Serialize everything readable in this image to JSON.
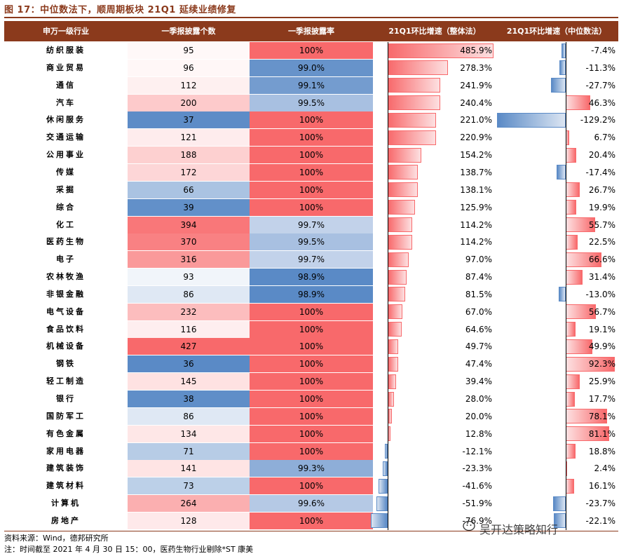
{
  "title": "图 17：中位数法下，顺周期板块 21Q1 延续业绩修复",
  "headers": [
    "申万一级行业",
    "一季报披露个数",
    "一季报披露率",
    "21Q1环比增速（整体法）",
    "21Q1环比增速（中位数法）"
  ],
  "rows": [
    {
      "name": "纺织服装",
      "count": 95,
      "rate": "100%",
      "total": "485.9%",
      "total_v": 485.9,
      "median": "-7.4%",
      "median_v": -7.4
    },
    {
      "name": "商业贸易",
      "count": 96,
      "rate": "99.0%",
      "total": "278.3%",
      "total_v": 278.3,
      "median": "-11.3%",
      "median_v": -11.3
    },
    {
      "name": "通信",
      "count": 112,
      "rate": "99.1%",
      "total": "241.9%",
      "total_v": 241.9,
      "median": "-27.7%",
      "median_v": -27.7
    },
    {
      "name": "汽车",
      "count": 200,
      "rate": "99.5%",
      "total": "240.4%",
      "total_v": 240.4,
      "median": "46.3%",
      "median_v": 46.3
    },
    {
      "name": "休闲服务",
      "count": 37,
      "rate": "100%",
      "total": "221.0%",
      "total_v": 221.0,
      "median": "-129.2%",
      "median_v": -129.2
    },
    {
      "name": "交通运输",
      "count": 121,
      "rate": "100%",
      "total": "220.9%",
      "total_v": 220.9,
      "median": "6.7%",
      "median_v": 6.7
    },
    {
      "name": "公用事业",
      "count": 188,
      "rate": "100%",
      "total": "154.2%",
      "total_v": 154.2,
      "median": "20.4%",
      "median_v": 20.4
    },
    {
      "name": "传媒",
      "count": 172,
      "rate": "100%",
      "total": "138.7%",
      "total_v": 138.7,
      "median": "-17.4%",
      "median_v": -17.4
    },
    {
      "name": "采掘",
      "count": 66,
      "rate": "100%",
      "total": "138.1%",
      "total_v": 138.1,
      "median": "26.7%",
      "median_v": 26.7
    },
    {
      "name": "综合",
      "count": 39,
      "rate": "100%",
      "total": "125.9%",
      "total_v": 125.9,
      "median": "19.9%",
      "median_v": 19.9
    },
    {
      "name": "化工",
      "count": 394,
      "rate": "99.7%",
      "total": "114.2%",
      "total_v": 114.2,
      "median": "55.7%",
      "median_v": 55.7
    },
    {
      "name": "医药生物",
      "count": 370,
      "rate": "99.5%",
      "total": "114.2%",
      "total_v": 114.2,
      "median": "22.5%",
      "median_v": 22.5
    },
    {
      "name": "电子",
      "count": 316,
      "rate": "99.7%",
      "total": "97.0%",
      "total_v": 97.0,
      "median": "66.6%",
      "median_v": 66.6
    },
    {
      "name": "农林牧渔",
      "count": 93,
      "rate": "98.9%",
      "total": "87.4%",
      "total_v": 87.4,
      "median": "31.4%",
      "median_v": 31.4
    },
    {
      "name": "非银金融",
      "count": 86,
      "rate": "98.9%",
      "total": "81.5%",
      "total_v": 81.5,
      "median": "-13.0%",
      "median_v": -13.0
    },
    {
      "name": "电气设备",
      "count": 232,
      "rate": "100%",
      "total": "67.0%",
      "total_v": 67.0,
      "median": "56.7%",
      "median_v": 56.7
    },
    {
      "name": "食品饮料",
      "count": 116,
      "rate": "100%",
      "total": "64.6%",
      "total_v": 64.6,
      "median": "19.1%",
      "median_v": 19.1
    },
    {
      "name": "机械设备",
      "count": 427,
      "rate": "100%",
      "total": "49.7%",
      "total_v": 49.7,
      "median": "49.9%",
      "median_v": 49.9
    },
    {
      "name": "钢铁",
      "count": 36,
      "rate": "100%",
      "total": "47.4%",
      "total_v": 47.4,
      "median": "92.3%",
      "median_v": 92.3
    },
    {
      "name": "轻工制造",
      "count": 145,
      "rate": "100%",
      "total": "39.4%",
      "total_v": 39.4,
      "median": "25.9%",
      "median_v": 25.9
    },
    {
      "name": "银行",
      "count": 38,
      "rate": "100%",
      "total": "28.0%",
      "total_v": 28.0,
      "median": "17.7%",
      "median_v": 17.7
    },
    {
      "name": "国防军工",
      "count": 86,
      "rate": "100%",
      "total": "20.0%",
      "total_v": 20.0,
      "median": "78.1%",
      "median_v": 78.1
    },
    {
      "name": "有色金属",
      "count": 134,
      "rate": "100%",
      "total": "12.8%",
      "total_v": 12.8,
      "median": "81.1%",
      "median_v": 81.1
    },
    {
      "name": "家用电器",
      "count": 71,
      "rate": "100%",
      "total": "-12.1%",
      "total_v": -12.1,
      "median": "18.8%",
      "median_v": 18.8
    },
    {
      "name": "建筑装饰",
      "count": 141,
      "rate": "99.3%",
      "total": "-23.3%",
      "total_v": -23.3,
      "median": "2.4%",
      "median_v": 2.4
    },
    {
      "name": "建筑材料",
      "count": 73,
      "rate": "100%",
      "total": "-41.6%",
      "total_v": -41.6,
      "median": "16.1%",
      "median_v": 16.1
    },
    {
      "name": "计算机",
      "count": 264,
      "rate": "99.6%",
      "total": "-51.9%",
      "total_v": -51.9,
      "median": "-23.7%",
      "median_v": -23.7
    },
    {
      "name": "房地产",
      "count": 128,
      "rate": "100%",
      "total": "-76.9%",
      "total_v": -76.9,
      "median": "-22.1%",
      "median_v": -22.1
    }
  ],
  "footer": {
    "source": "资料来源：Wind，德邦研究所",
    "note": "注：时间截至 2021 年 4 月 30 日 15：00，医药生物行业剔除*ST 康美"
  },
  "watermark": "吴开达策略知行",
  "colors": {
    "brand": "#8b3a1c",
    "red": "#f8696b",
    "blue": "#5a8ac6",
    "white": "#ffffff"
  }
}
